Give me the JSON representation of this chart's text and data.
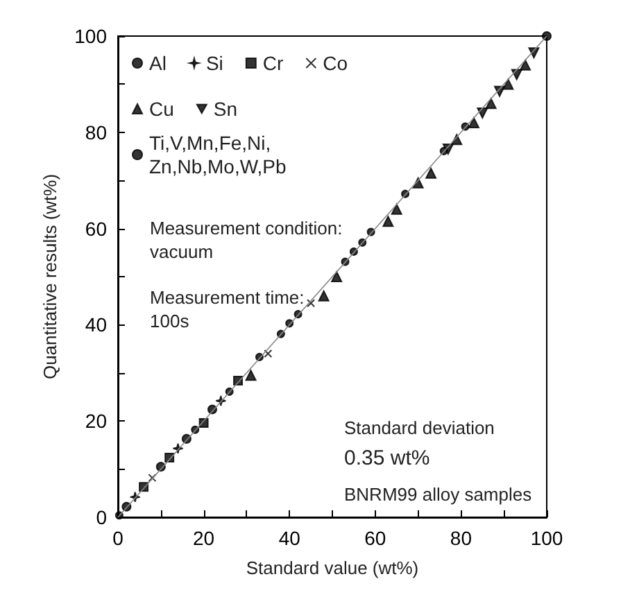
{
  "chart_data": {
    "type": "scatter",
    "xlabel": "Standard value (wt%)",
    "ylabel": "Quantitative results (wt%)",
    "xlim": [
      0,
      100
    ],
    "ylim": [
      0,
      100
    ],
    "xticks": [
      0,
      {
        "value": 10,
        "label": null
      },
      20,
      {
        "value": 30,
        "label": null
      },
      40,
      {
        "value": 50,
        "label": null
      },
      60,
      {
        "value": 70,
        "label": null
      },
      80,
      {
        "value": 90,
        "label": null
      },
      100
    ],
    "yticks": [
      0,
      {
        "value": 10,
        "label": null
      },
      20,
      {
        "value": 30,
        "label": null
      },
      40,
      {
        "value": 50,
        "label": null
      },
      60,
      {
        "value": 70,
        "label": null
      },
      80,
      {
        "value": 90,
        "label": null
      },
      100
    ],
    "grid": false,
    "legend": "top left",
    "series": [
      {
        "name": "Al",
        "color": "#000000",
        "marker": "circle",
        "x": [
          2,
          10,
          16,
          22,
          100
        ],
        "values": [
          2.2,
          10.5,
          16.3,
          22.4,
          100
        ]
      },
      {
        "name": "Si",
        "color": "#000000",
        "marker": "star",
        "x": [
          4,
          14,
          24
        ],
        "values": [
          4.2,
          14.3,
          24.2
        ]
      },
      {
        "name": "Cr",
        "color": "#000000",
        "marker": "square",
        "x": [
          6,
          12,
          20,
          28
        ],
        "values": [
          6.3,
          12.4,
          19.6,
          28.4
        ]
      },
      {
        "name": "Co",
        "color": "#000000",
        "marker": "cross",
        "x": [
          8,
          35,
          45
        ],
        "values": [
          8.2,
          34,
          44.5
        ]
      },
      {
        "name": "Cu",
        "color": "#000000",
        "marker": "triangle",
        "x": [
          31,
          48,
          51,
          63,
          65,
          70,
          73,
          79,
          83,
          87,
          91,
          95
        ],
        "values": [
          29.5,
          46,
          50,
          61.5,
          64,
          69.5,
          71.5,
          78.5,
          82,
          86,
          90,
          94
        ]
      },
      {
        "name": "Sn",
        "color": "#000000",
        "marker": "triangle-down",
        "x": [
          77,
          85,
          89,
          93,
          97
        ],
        "values": [
          76.5,
          84,
          88.5,
          92,
          96.5
        ]
      },
      {
        "name": "Ti,V,Mn,Fe,Ni,\nZn,Nb,Mo,W,Pb",
        "color": "#000000",
        "marker": "dot",
        "x": [
          0.3,
          18,
          26,
          33,
          38,
          40,
          42,
          53,
          55,
          57,
          59,
          67,
          76,
          81
        ],
        "values": [
          0.4,
          18.2,
          26.1,
          33.3,
          38.1,
          40.3,
          42.2,
          53.1,
          55.2,
          57.1,
          59.3,
          67.2,
          76.1,
          81.2
        ]
      },
      {
        "type": "line",
        "color": "#888888",
        "marker": "none",
        "x": [
          0,
          100
        ],
        "values": [
          0,
          100
        ]
      }
    ],
    "annotations": [
      "Measurement condition:\nvacuum",
      "Measurement time:\n100s",
      "Standard deviation",
      "0.35 wt%",
      "BNRM99 alloy samples"
    ]
  }
}
